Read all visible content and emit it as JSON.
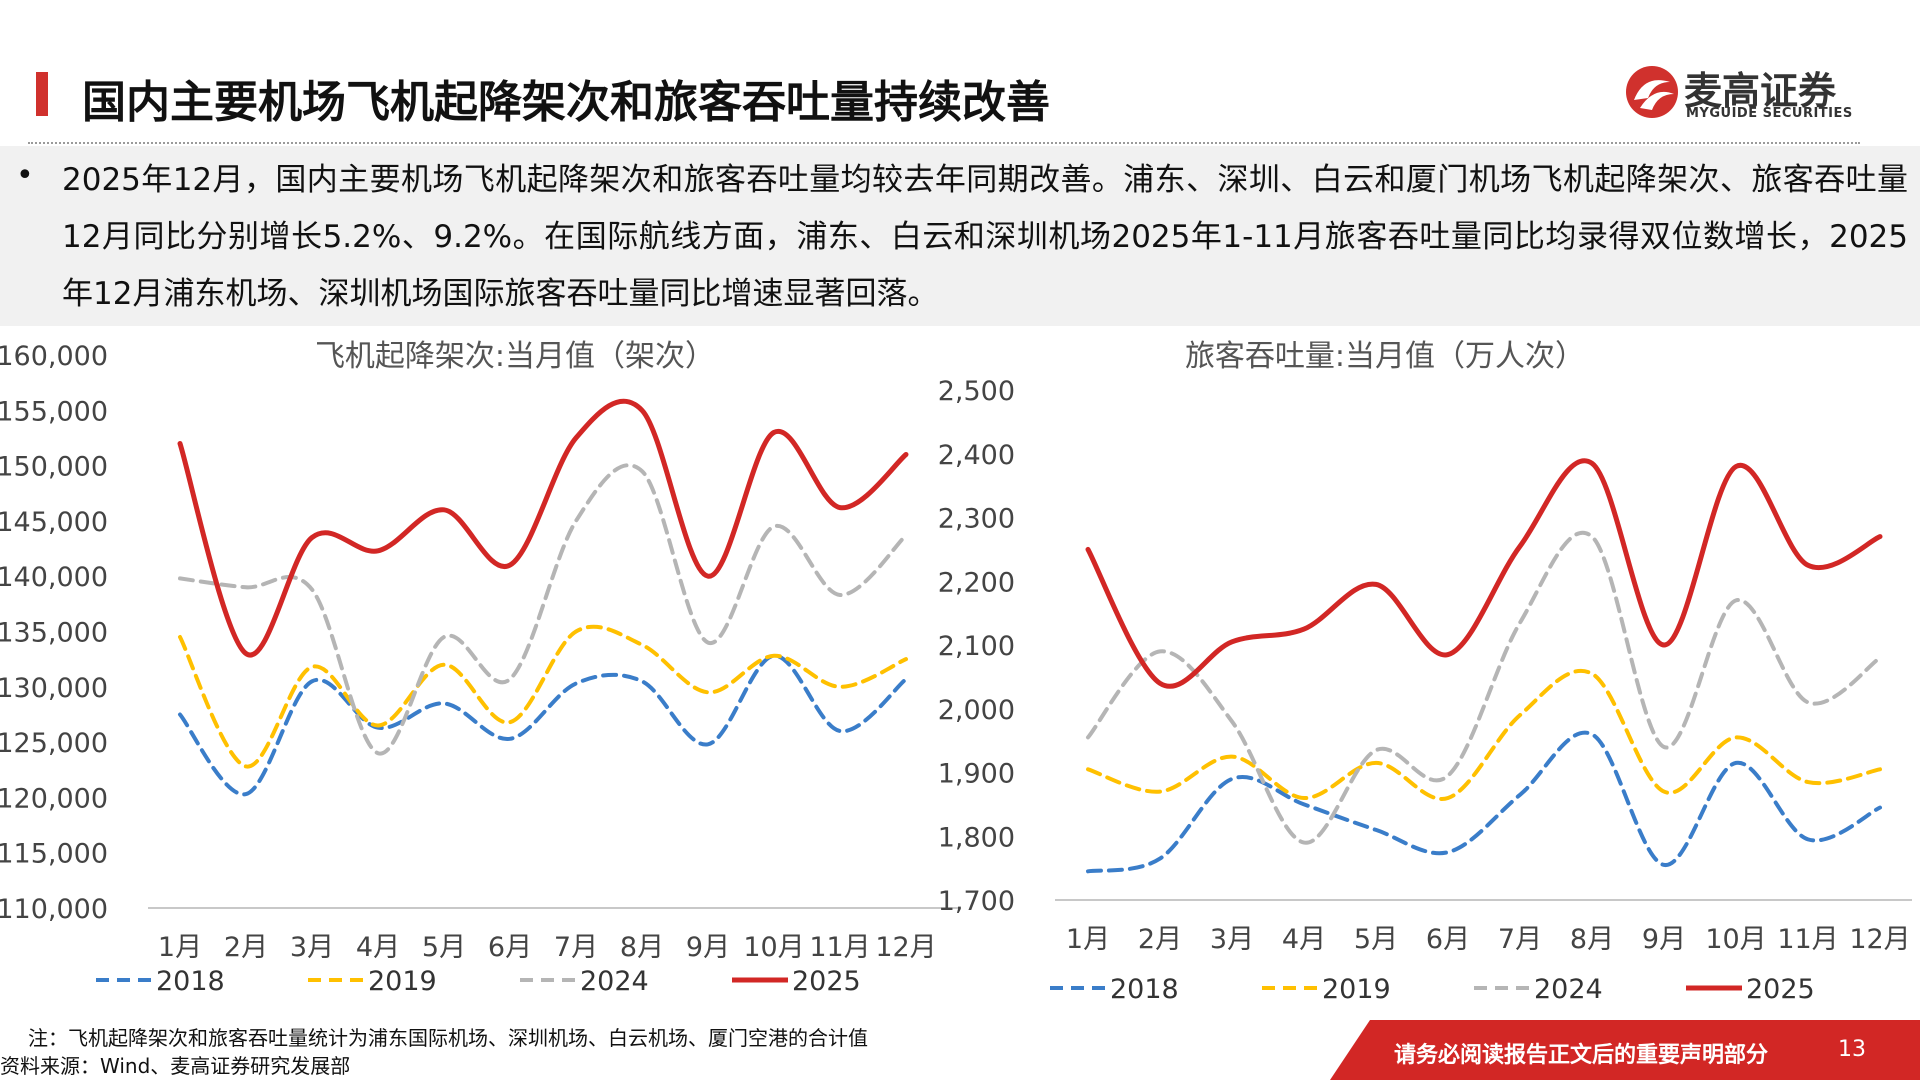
{
  "header": {
    "title": "国内主要机场飞机起降架次和旅客吞吐量持续改善",
    "logo_name": "麦高证券",
    "logo_sub": "MYGUIDE SECURITIES"
  },
  "summary": {
    "text": "2025年12月，国内主要机场飞机起降架次和旅客吞吐量均较去年同期改善。浦东、深圳、白云和厦门机场飞机起降架次、旅客吞吐量12月同比分别增长5.2%、9.2%。在国际航线方面，浦东、白云和深圳机场2025年1-11月旅客吞吐量同比均录得双位数增长，2025年12月浦东机场、深圳机场国际旅客吞吐量同比增速显著回落。"
  },
  "chart_data": [
    {
      "type": "line",
      "title": "飞机起降架次:当月值（架次）",
      "categories": [
        "1月",
        "2月",
        "3月",
        "4月",
        "5月",
        "6月",
        "7月",
        "8月",
        "9月",
        "10月",
        "11月",
        "12月"
      ],
      "yticks": [
        "110,000",
        "115,000",
        "120,000",
        "125,000",
        "130,000",
        "135,000",
        "140,000",
        "145,000",
        "150,000",
        "155,000",
        "160,000"
      ],
      "ylim": [
        110000,
        160000
      ],
      "series": [
        {
          "name": "2018",
          "color": "#3a7dc9",
          "dash": true,
          "values": [
            127500,
            120300,
            130500,
            126300,
            128500,
            125300,
            130300,
            130500,
            124800,
            132800,
            126000,
            130700
          ]
        },
        {
          "name": "2019",
          "color": "#ffc000",
          "dash": true,
          "values": [
            134500,
            122800,
            131800,
            126500,
            132000,
            126800,
            135000,
            133800,
            129500,
            132800,
            130000,
            132500
          ]
        },
        {
          "name": "2024",
          "color": "#b5b5b5",
          "dash": true,
          "values": [
            139800,
            139000,
            138800,
            124000,
            134500,
            130700,
            145000,
            149500,
            134000,
            144500,
            138300,
            143700
          ]
        },
        {
          "name": "2025",
          "color": "#d22725",
          "dash": false,
          "values": [
            152000,
            133000,
            143500,
            142300,
            146000,
            141000,
            152500,
            155000,
            140000,
            153000,
            146200,
            151000
          ]
        }
      ]
    },
    {
      "type": "line",
      "title": "旅客吞吐量:当月值（万人次）",
      "categories": [
        "1月",
        "2月",
        "3月",
        "4月",
        "5月",
        "6月",
        "7月",
        "8月",
        "9月",
        "10月",
        "11月",
        "12月"
      ],
      "yticks": [
        "1,700",
        "1,800",
        "1,900",
        "2,000",
        "2,100",
        "2,200",
        "2,300",
        "2,400",
        "2,500"
      ],
      "ylim": [
        1700,
        2500
      ],
      "series": [
        {
          "name": "2018",
          "color": "#3a7dc9",
          "dash": true,
          "values": [
            1745,
            1765,
            1890,
            1850,
            1810,
            1775,
            1865,
            1960,
            1755,
            1915,
            1795,
            1845
          ]
        },
        {
          "name": "2019",
          "color": "#ffc000",
          "dash": true,
          "values": [
            1905,
            1870,
            1925,
            1860,
            1915,
            1860,
            1990,
            2055,
            1870,
            1955,
            1885,
            1905
          ]
        },
        {
          "name": "2024",
          "color": "#b5b5b5",
          "dash": true,
          "values": [
            1955,
            2090,
            1980,
            1790,
            1935,
            1895,
            2135,
            2270,
            1940,
            2170,
            2010,
            2080
          ]
        },
        {
          "name": "2025",
          "color": "#d22725",
          "dash": false,
          "values": [
            2250,
            2040,
            2105,
            2125,
            2195,
            2085,
            2255,
            2385,
            2100,
            2380,
            2225,
            2270
          ]
        }
      ]
    }
  ],
  "footer": {
    "note": "注：飞机起降架次和旅客吞吐量统计为浦东国际机场、深圳机场、白云机场、厦门空港的合计值",
    "source": "资料来源：Wind、麦高证券研究发展部",
    "disclaimer": "请务必阅读报告正文后的重要声明部分",
    "page": "13"
  },
  "colors": {
    "accent": "#d0312d",
    "disclaimer_bg": "#d22725"
  }
}
